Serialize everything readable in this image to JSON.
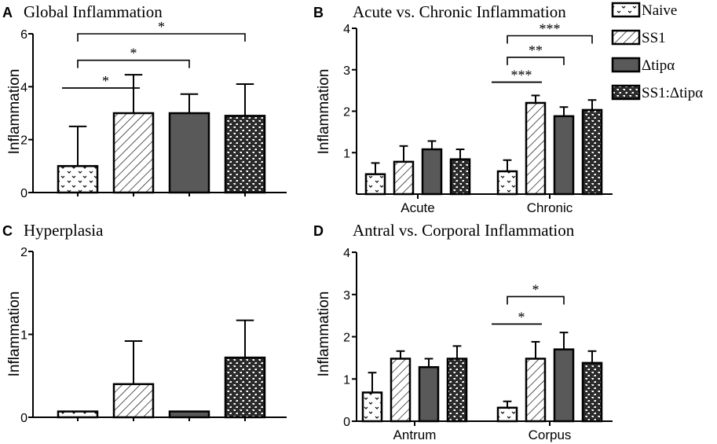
{
  "colors": {
    "ink": "#000000",
    "dark_bar": "#595959",
    "background": "#ffffff"
  },
  "legend": {
    "entries": [
      {
        "key": "naive",
        "label": "Naive"
      },
      {
        "key": "ss1",
        "label": "SS1"
      },
      {
        "key": "dtip",
        "label": "Δtipα"
      },
      {
        "key": "combo",
        "label": "SS1:Δtipα"
      }
    ]
  },
  "chart_data": [
    {
      "panel": "A",
      "type": "bar",
      "title": "Global Inflammation",
      "ylabel": "Inflammation",
      "ylim": [
        0,
        6
      ],
      "yticks": [
        "0",
        "2",
        "4",
        "6"
      ],
      "categories": [
        ""
      ],
      "series": [
        {
          "name": "Naive",
          "values": [
            1.0
          ],
          "errors": [
            1.5
          ]
        },
        {
          "name": "SS1",
          "values": [
            3.0
          ],
          "errors": [
            1.45
          ]
        },
        {
          "name": "Δtipα",
          "values": [
            3.0
          ],
          "errors": [
            0.72
          ]
        },
        {
          "name": "SS1:Δtipα",
          "values": [
            2.9
          ],
          "errors": [
            1.2
          ]
        }
      ],
      "significance": [
        {
          "from": 0,
          "to": 1,
          "label": "*",
          "y": 3.95,
          "style": "line"
        },
        {
          "from": 0,
          "to": 2,
          "label": "*",
          "y": 5.0,
          "style": "bracket"
        },
        {
          "from": 0,
          "to": 3,
          "label": "*",
          "y": 6.0,
          "style": "bracket"
        }
      ]
    },
    {
      "panel": "B",
      "type": "bar",
      "title": "Acute vs. Chronic Inflammation",
      "ylabel": "Inflammation",
      "ylim": [
        0,
        4
      ],
      "yticks": [
        "1",
        "2",
        "3",
        "4"
      ],
      "categories": [
        "Acute",
        "Chronic"
      ],
      "series": [
        {
          "name": "Naive",
          "values": [
            0.48,
            0.55
          ],
          "errors": [
            0.27,
            0.27
          ]
        },
        {
          "name": "SS1",
          "values": [
            0.78,
            2.2
          ],
          "errors": [
            0.38,
            0.18
          ]
        },
        {
          "name": "Δtipα",
          "values": [
            1.08,
            1.88
          ],
          "errors": [
            0.2,
            0.22
          ]
        },
        {
          "name": "SS1:Δtipα",
          "values": [
            0.84,
            2.03
          ],
          "errors": [
            0.24,
            0.24
          ]
        }
      ],
      "significance": [
        {
          "group": 1,
          "from": 0,
          "to": 1,
          "label": "***",
          "y": 2.7,
          "style": "line"
        },
        {
          "group": 1,
          "from": 0,
          "to": 2,
          "label": "**",
          "y": 3.3,
          "style": "bracket"
        },
        {
          "group": 1,
          "from": 0,
          "to": 3,
          "label": "***",
          "y": 3.82,
          "style": "bracket"
        }
      ]
    },
    {
      "panel": "C",
      "type": "bar",
      "title": "Hyperplasia",
      "ylabel": "Inflammation",
      "ylim": [
        0,
        2
      ],
      "yticks": [
        "0",
        "1",
        "2"
      ],
      "categories": [
        ""
      ],
      "series": [
        {
          "name": "Naive",
          "values": [
            0.07
          ],
          "errors": [
            0
          ]
        },
        {
          "name": "SS1",
          "values": [
            0.4
          ],
          "errors": [
            0.52
          ]
        },
        {
          "name": "Δtipα",
          "values": [
            0.07
          ],
          "errors": [
            0
          ]
        },
        {
          "name": "SS1:Δtipα",
          "values": [
            0.72
          ],
          "errors": [
            0.45
          ]
        }
      ],
      "significance": []
    },
    {
      "panel": "D",
      "type": "bar",
      "title": "Antral vs. Corporal Inflammation",
      "ylabel": "Inflammation",
      "ylim": [
        0,
        4
      ],
      "yticks": [
        "0",
        "1",
        "2",
        "3",
        "4"
      ],
      "categories": [
        "Antrum",
        "Corpus"
      ],
      "series": [
        {
          "name": "Naive",
          "values": [
            0.68,
            0.32
          ],
          "errors": [
            0.47,
            0.15
          ]
        },
        {
          "name": "SS1",
          "values": [
            1.48,
            1.48
          ],
          "errors": [
            0.18,
            0.4
          ]
        },
        {
          "name": "Δtipα",
          "values": [
            1.28,
            1.7
          ],
          "errors": [
            0.2,
            0.4
          ]
        },
        {
          "name": "SS1:Δtipα",
          "values": [
            1.48,
            1.38
          ],
          "errors": [
            0.3,
            0.28
          ]
        }
      ],
      "significance": [
        {
          "group": 1,
          "from": 0,
          "to": 1,
          "label": "*",
          "y": 2.3,
          "style": "line"
        },
        {
          "group": 1,
          "from": 0,
          "to": 2,
          "label": "*",
          "y": 2.95,
          "style": "bracket"
        }
      ]
    }
  ]
}
